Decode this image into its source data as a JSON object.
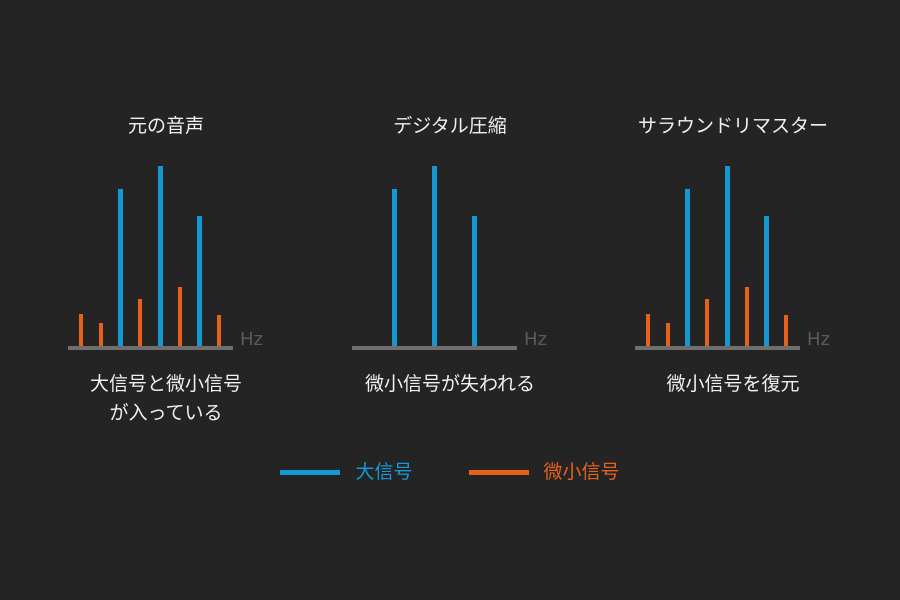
{
  "colors": {
    "background": "#242424",
    "large_signal": "#1598d4",
    "small_signal": "#e6611b",
    "axis_line": "#6f6f6f",
    "axis_label": "#5b5b5b",
    "text": "#f0f0f0"
  },
  "legend": {
    "items": [
      {
        "series": "large",
        "label": "大信号"
      },
      {
        "series": "small",
        "label": "微小信号"
      }
    ]
  },
  "chart_data": [
    {
      "type": "bar",
      "title": "元の音声",
      "caption": "大信号と微小信号\nが入っている",
      "xlabel": "Hz",
      "ylabel": "",
      "ylim": [
        0,
        100
      ],
      "x_axis": "frequency (unlabeled ticks)",
      "grid": false,
      "bars": [
        {
          "series": "small",
          "x_pct": 8.0,
          "amplitude": 18
        },
        {
          "series": "small",
          "x_pct": 19.9,
          "amplitude": 13
        },
        {
          "series": "large",
          "x_pct": 31.9,
          "amplitude": 87
        },
        {
          "series": "small",
          "x_pct": 43.8,
          "amplitude": 26
        },
        {
          "series": "large",
          "x_pct": 55.8,
          "amplitude": 100
        },
        {
          "series": "small",
          "x_pct": 67.7,
          "amplitude": 33
        },
        {
          "series": "large",
          "x_pct": 79.6,
          "amplitude": 72
        },
        {
          "series": "small",
          "x_pct": 91.5,
          "amplitude": 17
        }
      ]
    },
    {
      "type": "bar",
      "title": "デジタル圧縮",
      "caption": "微小信号が失われる",
      "xlabel": "Hz",
      "ylabel": "",
      "ylim": [
        0,
        100
      ],
      "x_axis": "frequency (unlabeled ticks)",
      "grid": false,
      "bars": [
        {
          "series": "large",
          "x_pct": 26.0,
          "amplitude": 87
        },
        {
          "series": "large",
          "x_pct": 50.0,
          "amplitude": 100
        },
        {
          "series": "large",
          "x_pct": 74.0,
          "amplitude": 72
        }
      ]
    },
    {
      "type": "bar",
      "title": "サラウンドリマスター",
      "caption": "微小信号を復元",
      "xlabel": "Hz",
      "ylabel": "",
      "ylim": [
        0,
        100
      ],
      "x_axis": "frequency (unlabeled ticks)",
      "grid": false,
      "bars": [
        {
          "series": "small",
          "x_pct": 8.0,
          "amplitude": 18
        },
        {
          "series": "small",
          "x_pct": 19.9,
          "amplitude": 13
        },
        {
          "series": "large",
          "x_pct": 31.9,
          "amplitude": 87
        },
        {
          "series": "small",
          "x_pct": 43.8,
          "amplitude": 26
        },
        {
          "series": "large",
          "x_pct": 55.8,
          "amplitude": 100
        },
        {
          "series": "small",
          "x_pct": 67.7,
          "amplitude": 33
        },
        {
          "series": "large",
          "x_pct": 79.6,
          "amplitude": 72
        },
        {
          "series": "small",
          "x_pct": 91.5,
          "amplitude": 17
        }
      ]
    }
  ]
}
